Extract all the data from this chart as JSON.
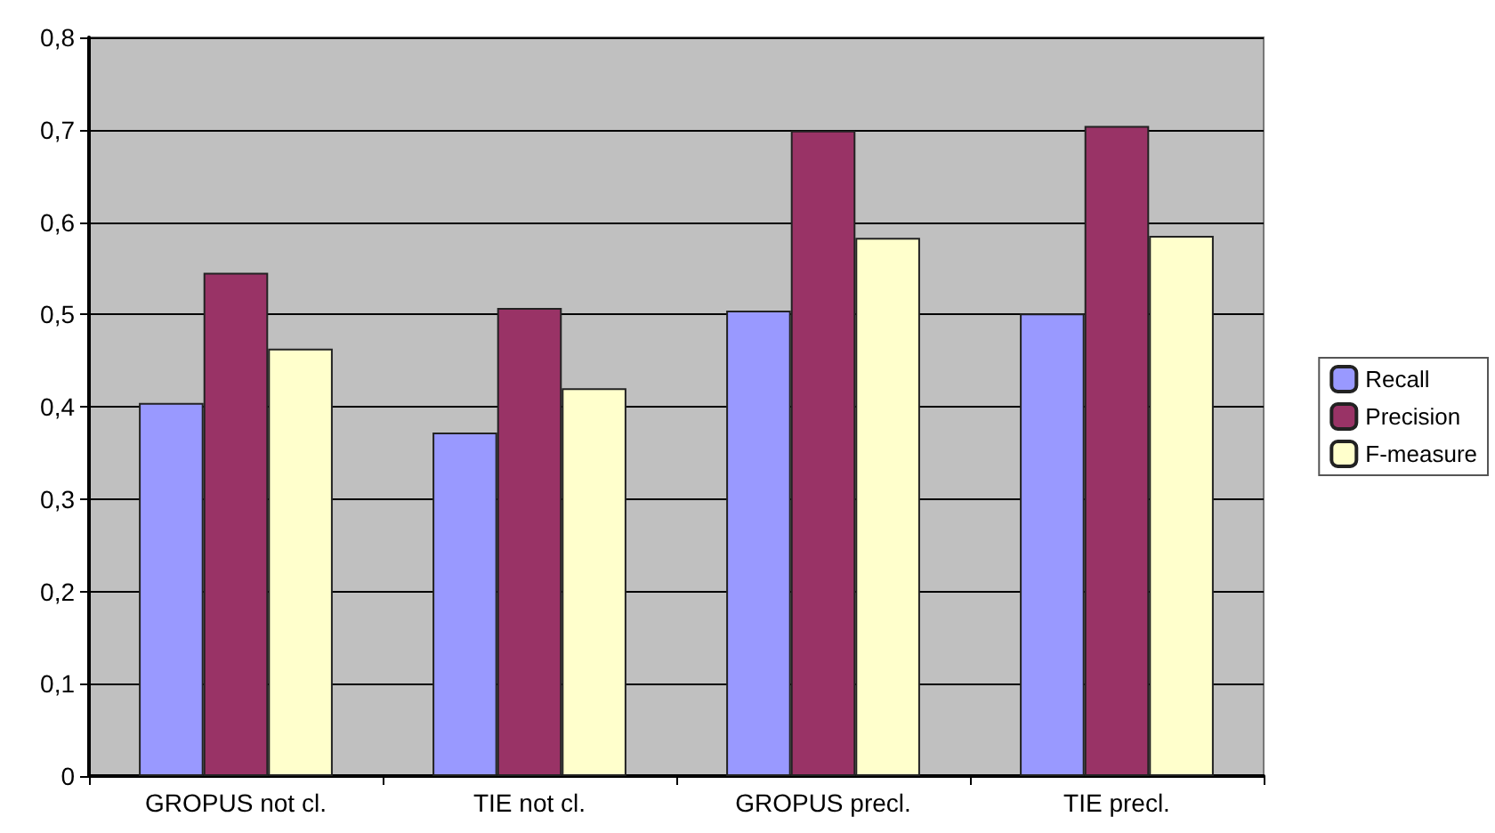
{
  "chart_data": {
    "type": "bar",
    "categories": [
      "GROPUS not cl.",
      "TIE not cl.",
      "GROPUS precl.",
      "TIE precl."
    ],
    "series": [
      {
        "name": "Recall",
        "color": "#9999ff",
        "values": [
          0.404,
          0.372,
          0.504,
          0.501
        ]
      },
      {
        "name": "Precision",
        "color": "#993366",
        "values": [
          0.545,
          0.507,
          0.699,
          0.704
        ]
      },
      {
        "name": "F-measure",
        "color": "#ffffcc",
        "values": [
          0.463,
          0.42,
          0.583,
          0.585
        ]
      }
    ],
    "ylim": [
      0,
      0.8
    ],
    "yticks": [
      {
        "value": 0,
        "label": "0"
      },
      {
        "value": 0.1,
        "label": "0,1"
      },
      {
        "value": 0.2,
        "label": "0,2"
      },
      {
        "value": 0.3,
        "label": "0,3"
      },
      {
        "value": 0.4,
        "label": "0,4"
      },
      {
        "value": 0.5,
        "label": "0,5"
      },
      {
        "value": 0.6,
        "label": "0,6"
      },
      {
        "value": 0.7,
        "label": "0,7"
      },
      {
        "value": 0.8,
        "label": "0,8"
      }
    ],
    "grid": "y",
    "legend": "right"
  }
}
